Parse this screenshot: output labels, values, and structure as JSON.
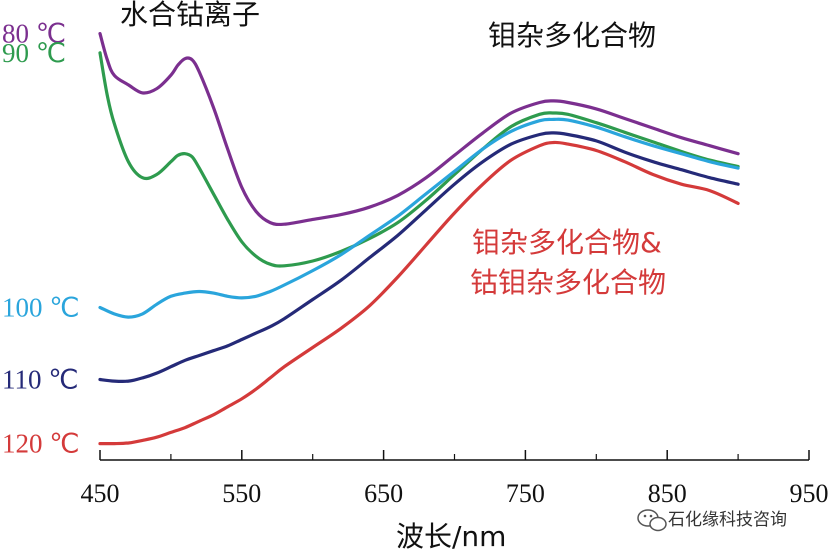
{
  "chart_data": {
    "type": "line",
    "title": "",
    "xlabel": "波长/nm",
    "ylabel": "",
    "xlim": [
      450,
      950
    ],
    "x_ticks": [
      450,
      550,
      650,
      750,
      850,
      950
    ],
    "y_ticks_shown": false,
    "grid": false,
    "series": [
      {
        "name": "80 ℃",
        "color": "#7b2f8f",
        "x": [
          450,
          455,
          460,
          470,
          480,
          490,
          500,
          505,
          510,
          515,
          520,
          530,
          540,
          550,
          560,
          570,
          580,
          600,
          620,
          640,
          660,
          680,
          700,
          720,
          740,
          760,
          770,
          780,
          800,
          820,
          840,
          860,
          880,
          900
        ],
        "y": [
          0.92,
          0.84,
          0.79,
          0.76,
          0.735,
          0.748,
          0.79,
          0.822,
          0.842,
          0.838,
          0.8,
          0.69,
          0.56,
          0.44,
          0.365,
          0.33,
          0.325,
          0.34,
          0.355,
          0.378,
          0.415,
          0.47,
          0.54,
          0.61,
          0.672,
          0.705,
          0.71,
          0.705,
          0.685,
          0.655,
          0.625,
          0.595,
          0.57,
          0.545
        ]
      },
      {
        "name": "90 ℃",
        "color": "#2e9b4e",
        "x": [
          450,
          455,
          460,
          470,
          480,
          490,
          500,
          505,
          510,
          515,
          520,
          530,
          540,
          550,
          560,
          570,
          580,
          600,
          620,
          640,
          660,
          680,
          700,
          720,
          740,
          760,
          770,
          780,
          800,
          820,
          840,
          860,
          880,
          900
        ],
        "y": [
          0.86,
          0.73,
          0.64,
          0.52,
          0.47,
          0.48,
          0.52,
          0.54,
          0.545,
          0.535,
          0.5,
          0.42,
          0.34,
          0.27,
          0.225,
          0.2,
          0.195,
          0.21,
          0.24,
          0.28,
          0.33,
          0.4,
          0.48,
          0.56,
          0.63,
          0.668,
          0.672,
          0.668,
          0.642,
          0.612,
          0.582,
          0.552,
          0.525,
          0.505
        ]
      },
      {
        "name": "100 ℃",
        "color": "#2aa5dc",
        "x": [
          450,
          460,
          470,
          480,
          490,
          500,
          510,
          520,
          530,
          540,
          550,
          560,
          570,
          580,
          600,
          620,
          640,
          660,
          680,
          700,
          720,
          740,
          760,
          770,
          780,
          800,
          820,
          840,
          860,
          880,
          900
        ],
        "y": [
          0.065,
          0.045,
          0.035,
          0.045,
          0.075,
          0.1,
          0.11,
          0.115,
          0.11,
          0.1,
          0.095,
          0.1,
          0.115,
          0.135,
          0.18,
          0.23,
          0.29,
          0.35,
          0.42,
          0.49,
          0.56,
          0.615,
          0.648,
          0.652,
          0.65,
          0.628,
          0.598,
          0.57,
          0.545,
          0.52,
          0.5
        ]
      },
      {
        "name": "110 ℃",
        "color": "#252a78",
        "x": [
          450,
          460,
          470,
          480,
          490,
          500,
          510,
          520,
          530,
          540,
          550,
          560,
          570,
          580,
          600,
          620,
          640,
          660,
          680,
          700,
          720,
          740,
          760,
          770,
          780,
          800,
          820,
          840,
          860,
          880,
          900
        ],
        "y": [
          -0.16,
          -0.165,
          -0.165,
          -0.155,
          -0.14,
          -0.12,
          -0.1,
          -0.085,
          -0.07,
          -0.055,
          -0.035,
          -0.015,
          0.005,
          0.03,
          0.09,
          0.15,
          0.22,
          0.29,
          0.37,
          0.45,
          0.52,
          0.575,
          0.605,
          0.61,
          0.605,
          0.585,
          0.55,
          0.52,
          0.495,
          0.47,
          0.45
        ]
      },
      {
        "name": "120 ℃",
        "color": "#d43a3a",
        "x": [
          450,
          460,
          470,
          480,
          490,
          500,
          510,
          520,
          530,
          540,
          550,
          560,
          570,
          580,
          600,
          620,
          640,
          660,
          680,
          700,
          720,
          740,
          760,
          770,
          780,
          800,
          820,
          840,
          860,
          880,
          900
        ],
        "y": [
          -0.36,
          -0.36,
          -0.358,
          -0.35,
          -0.34,
          -0.325,
          -0.31,
          -0.29,
          -0.27,
          -0.245,
          -0.22,
          -0.19,
          -0.155,
          -0.12,
          -0.06,
          0.0,
          0.07,
          0.16,
          0.26,
          0.36,
          0.45,
          0.525,
          0.57,
          0.58,
          0.575,
          0.555,
          0.52,
          0.48,
          0.45,
          0.43,
          0.39
        ]
      }
    ],
    "annotations": [
      {
        "id": "cobalt",
        "text": "水合钴离子",
        "color": "#111111"
      },
      {
        "id": "mo",
        "text": "钼杂多化合物",
        "color": "#111111"
      },
      {
        "id": "mix1",
        "text": "钼杂多化合物&",
        "color": "#d43a3a"
      },
      {
        "id": "mix2",
        "text": "钴钼杂多化合物",
        "color": "#d43a3a"
      }
    ]
  },
  "watermark": {
    "text": "石化缘科技咨询",
    "icon": "wechat-icon"
  }
}
